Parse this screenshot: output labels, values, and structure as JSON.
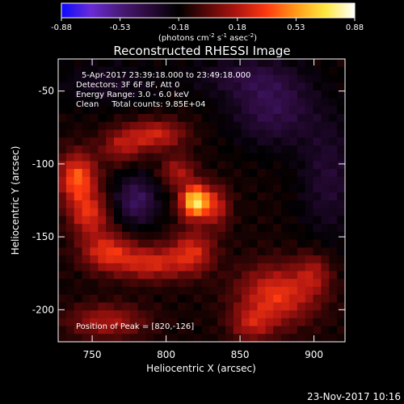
{
  "chart_data": {
    "type": "heatmap",
    "title": "Reconstructed RHESSI Image",
    "xlabel": "Heliocentric X (arcsec)",
    "ylabel": "Heliocentric Y (arcsec)",
    "xlim": [
      727,
      921
    ],
    "ylim": [
      -222,
      -28
    ],
    "x_ticks": [
      750,
      800,
      850,
      900
    ],
    "y_ticks": [
      -50,
      -100,
      -150,
      -200
    ],
    "colorbar": {
      "min": -0.88,
      "max": 0.88,
      "ticks": [
        "-0.88",
        "-0.53",
        "-0.18",
        "0.18",
        "0.53",
        "0.88"
      ],
      "units_text": "(photons cm",
      "units_exp1": "-2",
      "units_mid": " s",
      "units_exp2": "-1",
      "units_end": " asec",
      "units_exp3": "-2",
      "units_close": ")",
      "colors": [
        "#0a0aff",
        "#6a2bd6",
        "#4a1a7a",
        "#2a0a3a",
        "#000000",
        "#5a0808",
        "#b01510",
        "#ff3a10",
        "#ff9a18",
        "#ffe840",
        "#ffffff"
      ]
    },
    "annotations": [
      "5-Apr-2017 23:39:18.000 to 23:49:18.000",
      "Detectors: 3F 6F 8F, Att 0",
      "Energy Range: 3.0 - 6.0 keV",
      "Clean     Total counts: 9.85E+04",
      "Position of Peak = [820,-126]"
    ],
    "peak": [
      820,
      -126
    ],
    "sources": [
      {
        "x": 820,
        "y": -126,
        "amp": 0.88,
        "sx": 7,
        "sy": 8
      },
      {
        "x": 793,
        "y": -80,
        "amp": 0.38,
        "sx": 14,
        "sy": 7
      },
      {
        "x": 770,
        "y": -88,
        "amp": 0.28,
        "sx": 10,
        "sy": 8
      },
      {
        "x": 740,
        "y": -110,
        "amp": 0.55,
        "sx": 9,
        "sy": 12
      },
      {
        "x": 748,
        "y": -135,
        "amp": 0.4,
        "sx": 9,
        "sy": 10
      },
      {
        "x": 760,
        "y": -160,
        "amp": 0.42,
        "sx": 12,
        "sy": 9
      },
      {
        "x": 790,
        "y": -168,
        "amp": 0.4,
        "sx": 16,
        "sy": 8
      },
      {
        "x": 818,
        "y": -160,
        "amp": 0.38,
        "sx": 10,
        "sy": 10
      },
      {
        "x": 835,
        "y": -130,
        "amp": 0.3,
        "sx": 6,
        "sy": 10
      },
      {
        "x": 808,
        "y": -105,
        "amp": 0.3,
        "sx": 8,
        "sy": 7
      },
      {
        "x": 760,
        "y": -208,
        "amp": 0.3,
        "sx": 18,
        "sy": 8
      },
      {
        "x": 875,
        "y": -190,
        "amp": 0.45,
        "sx": 18,
        "sy": 14
      },
      {
        "x": 900,
        "y": -175,
        "amp": 0.25,
        "sx": 8,
        "sy": 10
      },
      {
        "x": 858,
        "y": -210,
        "amp": 0.28,
        "sx": 10,
        "sy": 8
      },
      {
        "x": 872,
        "y": -62,
        "amp": -0.25,
        "sx": 20,
        "sy": 18
      },
      {
        "x": 780,
        "y": -125,
        "amp": -0.3,
        "sx": 10,
        "sy": 12
      },
      {
        "x": 910,
        "y": -110,
        "amp": -0.18,
        "sx": 14,
        "sy": 30
      },
      {
        "x": 850,
        "y": -40,
        "amp": -0.15,
        "sx": 25,
        "sy": 10
      },
      {
        "x": 760,
        "y": -45,
        "amp": -0.12,
        "sx": 25,
        "sy": 12
      }
    ]
  },
  "footer": {
    "date": "23-Nov-2017 10:16"
  }
}
